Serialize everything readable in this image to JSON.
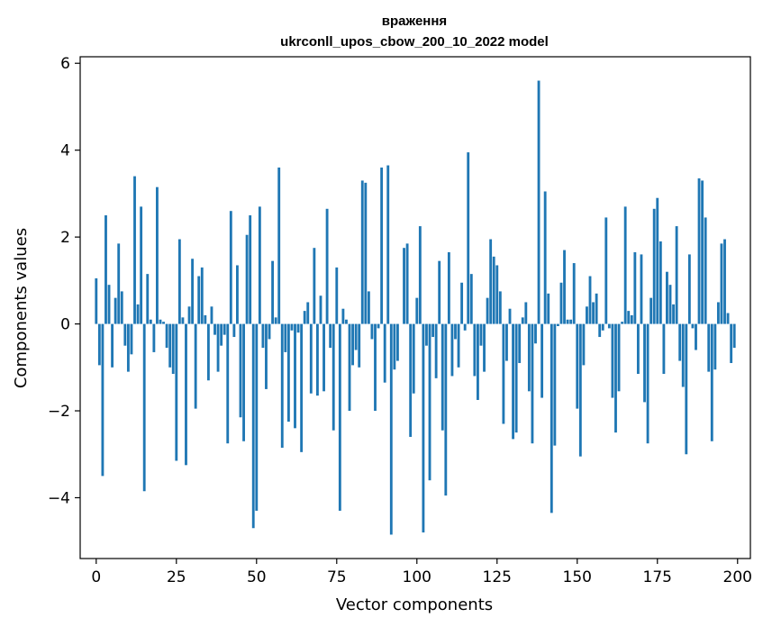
{
  "chart_data": {
    "type": "bar",
    "title_lines": [
      "враження",
      "ukrconll_upos_cbow_200_10_2022 model"
    ],
    "xlabel": "Vector components",
    "ylabel": "Components values",
    "xlim": [
      -5,
      204
    ],
    "ylim": [
      -5.4,
      6.15
    ],
    "xticks": [
      0,
      25,
      50,
      75,
      100,
      125,
      150,
      175,
      200
    ],
    "yticks": [
      -4,
      -2,
      0,
      2,
      4,
      6
    ],
    "bar_color": "#1f77b4",
    "grid": false,
    "x": [
      0,
      1,
      2,
      3,
      4,
      5,
      6,
      7,
      8,
      9,
      10,
      11,
      12,
      13,
      14,
      15,
      16,
      17,
      18,
      19,
      20,
      21,
      22,
      23,
      24,
      25,
      26,
      27,
      28,
      29,
      30,
      31,
      32,
      33,
      34,
      35,
      36,
      37,
      38,
      39,
      40,
      41,
      42,
      43,
      44,
      45,
      46,
      47,
      48,
      49,
      50,
      51,
      52,
      53,
      54,
      55,
      56,
      57,
      58,
      59,
      60,
      61,
      62,
      63,
      64,
      65,
      66,
      67,
      68,
      69,
      70,
      71,
      72,
      73,
      74,
      75,
      76,
      77,
      78,
      79,
      80,
      81,
      82,
      83,
      84,
      85,
      86,
      87,
      88,
      89,
      90,
      91,
      92,
      93,
      94,
      95,
      96,
      97,
      98,
      99,
      100,
      101,
      102,
      103,
      104,
      105,
      106,
      107,
      108,
      109,
      110,
      111,
      112,
      113,
      114,
      115,
      116,
      117,
      118,
      119,
      120,
      121,
      122,
      123,
      124,
      125,
      126,
      127,
      128,
      129,
      130,
      131,
      132,
      133,
      134,
      135,
      136,
      137,
      138,
      139,
      140,
      141,
      142,
      143,
      144,
      145,
      146,
      147,
      148,
      149,
      150,
      151,
      152,
      153,
      154,
      155,
      156,
      157,
      158,
      159,
      160,
      161,
      162,
      163,
      164,
      165,
      166,
      167,
      168,
      169,
      170,
      171,
      172,
      173,
      174,
      175,
      176,
      177,
      178,
      179,
      180,
      181,
      182,
      183,
      184,
      185,
      186,
      187,
      188,
      189,
      190,
      191,
      192,
      193,
      194,
      195,
      196,
      197,
      198,
      199
    ],
    "values": [
      1.05,
      -0.95,
      -3.5,
      2.5,
      0.9,
      -1.0,
      0.6,
      1.85,
      0.75,
      -0.5,
      -1.1,
      -0.7,
      3.4,
      0.45,
      2.7,
      -3.85,
      1.15,
      0.1,
      -0.65,
      3.15,
      0.1,
      0.05,
      -0.55,
      -1.0,
      -1.15,
      -3.15,
      1.95,
      0.15,
      -3.25,
      0.4,
      1.5,
      -1.95,
      1.1,
      1.3,
      0.2,
      -1.3,
      0.4,
      -0.25,
      -1.1,
      -0.5,
      -0.25,
      -2.75,
      2.6,
      -0.3,
      1.35,
      -2.15,
      -2.7,
      2.05,
      2.5,
      -4.7,
      -4.3,
      2.7,
      -0.55,
      -1.5,
      -0.35,
      1.45,
      0.15,
      3.6,
      -2.85,
      -0.65,
      -2.25,
      -0.15,
      -2.4,
      -0.2,
      -2.95,
      0.3,
      0.5,
      -1.6,
      1.75,
      -1.65,
      0.65,
      -1.55,
      2.65,
      -0.55,
      -2.45,
      1.3,
      -4.3,
      0.35,
      0.1,
      -2.0,
      -0.95,
      -0.6,
      -1.0,
      3.3,
      3.25,
      0.75,
      -0.35,
      -2.0,
      -0.1,
      3.6,
      -1.35,
      3.65,
      -4.85,
      -1.05,
      -0.85,
      0.0,
      1.75,
      1.85,
      -2.6,
      -1.6,
      0.6,
      2.25,
      -4.8,
      -0.5,
      -3.6,
      -0.3,
      -1.25,
      1.45,
      -2.45,
      -3.95,
      1.65,
      -1.2,
      -0.35,
      -1.0,
      0.95,
      -0.15,
      3.95,
      1.15,
      -1.2,
      -1.75,
      -0.5,
      -1.1,
      0.6,
      1.95,
      1.55,
      1.35,
      0.75,
      -2.3,
      -0.85,
      0.35,
      -2.65,
      -2.5,
      -0.9,
      0.15,
      0.5,
      -1.55,
      -2.75,
      -0.45,
      5.6,
      -1.7,
      3.05,
      0.7,
      -4.35,
      -2.8,
      -0.05,
      0.95,
      1.7,
      0.1,
      0.1,
      1.4,
      -1.95,
      -3.05,
      -0.95,
      0.4,
      1.1,
      0.5,
      0.7,
      -0.3,
      -0.15,
      2.45,
      -0.1,
      -1.7,
      -2.5,
      -1.55,
      0.05,
      2.7,
      0.3,
      0.2,
      1.65,
      -1.15,
      1.6,
      -1.8,
      -2.75,
      0.6,
      2.65,
      2.9,
      1.9,
      -1.15,
      1.2,
      0.9,
      0.45,
      2.25,
      -0.85,
      -1.45,
      -3.0,
      1.6,
      -0.1,
      -0.6,
      3.35,
      3.3,
      2.45,
      -1.1,
      -2.7,
      -1.05,
      0.5,
      1.85,
      1.95,
      0.25,
      -0.9,
      -0.55
    ]
  }
}
